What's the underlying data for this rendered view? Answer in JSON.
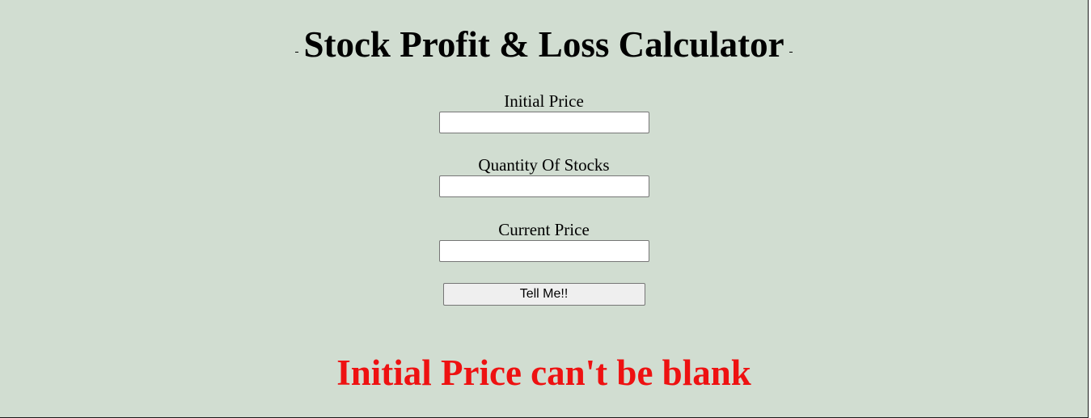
{
  "header": {
    "title": "Stock Profit & Loss Calculator"
  },
  "form": {
    "initial_price": {
      "label": "Initial Price",
      "value": "",
      "placeholder": ""
    },
    "quantity": {
      "label": "Quantity Of Stocks",
      "value": "",
      "placeholder": ""
    },
    "current_price": {
      "label": "Current Price",
      "value": "",
      "placeholder": ""
    },
    "submit_label": "Tell Me!!"
  },
  "output": {
    "message": "Initial Price can't be blank",
    "color": "#ee1111"
  },
  "theme": {
    "background": "#d1ddd1"
  }
}
